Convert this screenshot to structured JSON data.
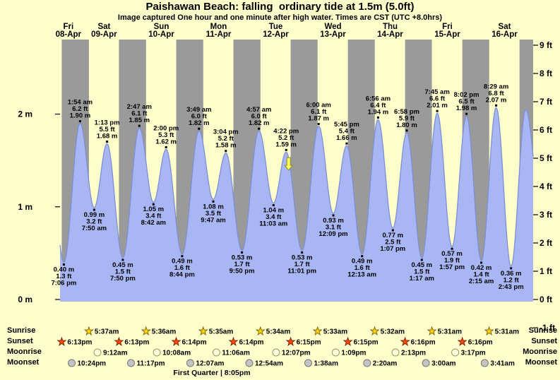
{
  "title": "Paishawan Beach: falling  ordinary tide at 1.5m (5.0ft)",
  "subtitle": "Image captured One hour and one minute after high water. Times are CST (UTC +8.0hrs)",
  "colors": {
    "background": "#ffffcc",
    "night_band": "#9a9a9a",
    "tide_fill": "#a8b6f4",
    "tide_stroke": "#7d8fd6",
    "day_label": "#ff0000",
    "text": "#000000",
    "sunrise_star": "#ffd700",
    "sunset_star": "#ff4a00",
    "moonrise_circle": "#ffffe0",
    "moonset_circle": "#c4c4c4",
    "marker_arrow": "#ffff55"
  },
  "chart_data": {
    "type": "area",
    "title": "Paishawan Beach tide heights 08-Apr to 16-Apr",
    "timeline": {
      "t_start": 17.5,
      "t_end": 216,
      "unit": "hours from 00:00 08-Apr"
    },
    "y_axis": {
      "left_ticks": [
        {
          "label": "2 m",
          "m": 2
        },
        {
          "label": "1 m",
          "m": 1
        },
        {
          "label": "0 m",
          "m": 0
        }
      ],
      "right_ticks": [
        {
          "label": "9 ft",
          "ft": 9
        },
        {
          "label": "8 ft",
          "ft": 8
        },
        {
          "label": "7 ft",
          "ft": 7
        },
        {
          "label": "6 ft",
          "ft": 6
        },
        {
          "label": "5 ft",
          "ft": 5
        },
        {
          "label": "4 ft",
          "ft": 4
        },
        {
          "label": "3 ft",
          "ft": 3
        },
        {
          "label": "2 ft",
          "ft": 2
        },
        {
          "label": "1 ft",
          "ft": 1
        },
        {
          "label": "0 ft",
          "ft": 0
        },
        {
          "label": "-1 ft",
          "ft": -1
        }
      ]
    },
    "days": [
      {
        "weekday": "Fri",
        "date": "08-Apr",
        "t_center": 21
      },
      {
        "weekday": "Sat",
        "date": "09-Apr",
        "t_center": 36
      },
      {
        "weekday": "Sun",
        "date": "10-Apr",
        "t_center": 60
      },
      {
        "weekday": "Mon",
        "date": "11-Apr",
        "t_center": 84
      },
      {
        "weekday": "Tue",
        "date": "12-Apr",
        "t_center": 108
      },
      {
        "weekday": "Wed",
        "date": "13-Apr",
        "t_center": 132
      },
      {
        "weekday": "Thu",
        "date": "14-Apr",
        "t_center": 156
      },
      {
        "weekday": "Fri",
        "date": "15-Apr",
        "t_center": 180
      },
      {
        "weekday": "Sat",
        "date": "16-Apr",
        "t_center": 204
      }
    ],
    "extremes": [
      {
        "type": "low",
        "time": "7:06 pm",
        "t": 19.1,
        "m": "0.40",
        "ft": "1.3"
      },
      {
        "type": "high",
        "time": "1:54 am",
        "t": 25.9,
        "m": "1.90",
        "ft": "6.2"
      },
      {
        "type": "low",
        "time": "7:50 am",
        "t": 31.83,
        "m": "0.99",
        "ft": "3.2"
      },
      {
        "type": "high",
        "time": "1:13 pm",
        "t": 37.22,
        "m": "1.68",
        "ft": "5.5"
      },
      {
        "type": "low",
        "time": "7:50 pm",
        "t": 43.83,
        "m": "0.45",
        "ft": "1.5"
      },
      {
        "type": "high",
        "time": "2:47 am",
        "t": 50.78,
        "m": "1.85",
        "ft": "6.1"
      },
      {
        "type": "low",
        "time": "8:42 am",
        "t": 56.7,
        "m": "1.05",
        "ft": "3.4"
      },
      {
        "type": "high",
        "time": "2:00 pm",
        "t": 62.0,
        "m": "1.62",
        "ft": "5.3"
      },
      {
        "type": "low",
        "time": "8:44 pm",
        "t": 68.73,
        "m": "0.49",
        "ft": "1.6"
      },
      {
        "type": "high",
        "time": "3:49 am",
        "t": 75.82,
        "m": "1.82",
        "ft": "6.0"
      },
      {
        "type": "low",
        "time": "9:47 am",
        "t": 81.78,
        "m": "1.08",
        "ft": "3.5"
      },
      {
        "type": "high",
        "time": "3:04 pm",
        "t": 87.07,
        "m": "1.58",
        "ft": "5.2"
      },
      {
        "type": "low",
        "time": "9:50 pm",
        "t": 93.83,
        "m": "0.53",
        "ft": "1.7"
      },
      {
        "type": "high",
        "time": "4:57 am",
        "t": 100.95,
        "m": "1.82",
        "ft": "6.0"
      },
      {
        "type": "low",
        "time": "11:03 am",
        "t": 107.05,
        "m": "1.04",
        "ft": "3.4"
      },
      {
        "type": "high",
        "time": "4:22 pm",
        "t": 112.37,
        "m": "1.59",
        "ft": "5.2"
      },
      {
        "type": "low",
        "time": "11:01 pm",
        "t": 119.02,
        "m": "0.53",
        "ft": "1.7"
      },
      {
        "type": "high",
        "time": "6:00 am",
        "t": 126.0,
        "m": "1.87",
        "ft": "6.1"
      },
      {
        "type": "low",
        "time": "12:09 pm",
        "t": 132.15,
        "m": "0.93",
        "ft": "3.1"
      },
      {
        "type": "high",
        "time": "5:45 pm",
        "t": 137.75,
        "m": "1.66",
        "ft": "5.4"
      },
      {
        "type": "low",
        "time": "12:13 am",
        "t": 144.22,
        "m": "0.49",
        "ft": "1.6"
      },
      {
        "type": "high",
        "time": "6:56 am",
        "t": 150.93,
        "m": "1.94",
        "ft": "6.4"
      },
      {
        "type": "low",
        "time": "1:07 pm",
        "t": 157.12,
        "m": "0.77",
        "ft": "2.5"
      },
      {
        "type": "high",
        "time": "6:58 pm",
        "t": 162.97,
        "m": "1.80",
        "ft": "5.9"
      },
      {
        "type": "low",
        "time": "1:17 am",
        "t": 169.28,
        "m": "0.45",
        "ft": "1.5"
      },
      {
        "type": "high",
        "time": "7:45 am",
        "t": 175.75,
        "m": "2.01",
        "ft": "6.6"
      },
      {
        "type": "low",
        "time": "1:57 pm",
        "t": 181.95,
        "m": "0.57",
        "ft": "1.9"
      },
      {
        "type": "high",
        "time": "8:02 pm",
        "t": 188.03,
        "m": "1.98",
        "ft": "6.5"
      },
      {
        "type": "low",
        "time": "2:15 am",
        "t": 194.25,
        "m": "0.42",
        "ft": "1.4"
      },
      {
        "type": "high",
        "time": "8:29 am",
        "t": 200.48,
        "m": "2.07",
        "ft": "6.8"
      },
      {
        "type": "low",
        "time": "2:43 pm",
        "t": 206.72,
        "m": "0.36",
        "ft": "1.2"
      }
    ],
    "offscreen_anchor_points": [
      {
        "t": 12.7,
        "m": 1.68
      },
      {
        "t": 212.9,
        "m": 2.05
      },
      {
        "t": 219.2,
        "m": 1.0
      }
    ],
    "current_marker": {
      "t": 113.4,
      "m": 1.5
    },
    "final_night_start_t": 210.27
  },
  "astro": {
    "rows": [
      {
        "key": "sunrise",
        "label": "Sunrise",
        "events": [
          {
            "time": "5:37am",
            "t": 29.62
          },
          {
            "time": "5:36am",
            "t": 53.6
          },
          {
            "time": "5:35am",
            "t": 77.58
          },
          {
            "time": "5:34am",
            "t": 101.57
          },
          {
            "time": "5:33am",
            "t": 125.55
          },
          {
            "time": "5:32am",
            "t": 149.53
          },
          {
            "time": "5:31am",
            "t": 173.52
          },
          {
            "time": "5:31am",
            "t": 197.52
          }
        ]
      },
      {
        "key": "sunset",
        "label": "Sunset",
        "events": [
          {
            "time": "6:13pm",
            "t": 18.22
          },
          {
            "time": "6:13pm",
            "t": 42.22
          },
          {
            "time": "6:14pm",
            "t": 66.23
          },
          {
            "time": "6:14pm",
            "t": 90.23
          },
          {
            "time": "6:15pm",
            "t": 114.25
          },
          {
            "time": "6:15pm",
            "t": 138.25
          },
          {
            "time": "6:16pm",
            "t": 162.27
          },
          {
            "time": "6:16pm",
            "t": 186.27
          }
        ]
      },
      {
        "key": "moonrise",
        "label": "Moonrise",
        "events": [
          {
            "time": "9:12am",
            "t": 33.2
          },
          {
            "time": "10:08am",
            "t": 58.13
          },
          {
            "time": "11:06am",
            "t": 83.1
          },
          {
            "time": "12:07pm",
            "t": 108.12
          },
          {
            "time": "1:09pm",
            "t": 133.15
          },
          {
            "time": "2:13pm",
            "t": 158.22
          },
          {
            "time": "3:17pm",
            "t": 183.28
          }
        ]
      },
      {
        "key": "moonset",
        "label": "Moonset",
        "events": [
          {
            "time": "10:24pm",
            "t": 22.4
          },
          {
            "time": "11:17pm",
            "t": 47.28
          },
          {
            "time": "12:07am",
            "t": 72.12
          },
          {
            "time": "12:54am",
            "t": 96.9
          },
          {
            "time": "1:38am",
            "t": 121.63
          },
          {
            "time": "2:20am",
            "t": 146.33
          },
          {
            "time": "3:00am",
            "t": 171.0
          },
          {
            "time": "3:41am",
            "t": 195.68
          }
        ]
      }
    ],
    "moon_phase": "First Quarter | 8:05pm"
  }
}
